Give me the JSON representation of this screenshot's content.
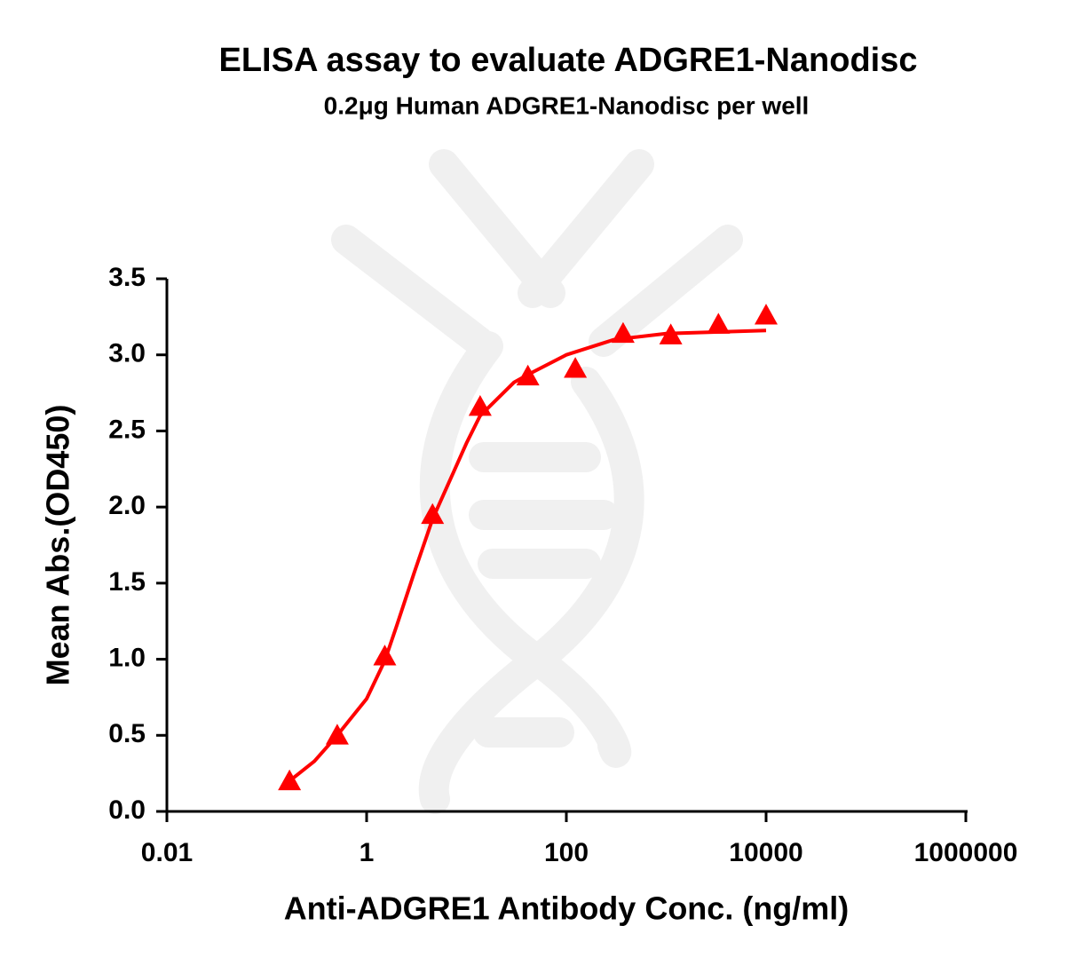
{
  "chart_data": {
    "type": "scatter",
    "title": "ELISA assay to evaluate ADGRE1-Nanodisc",
    "subtitle": "0.2μg Human ADGRE1-Nanodisc per well",
    "x_label": "Anti-ADGRE1 Antibody Conc. (ng/ml)",
    "y_label": "Mean Abs.(OD450)",
    "x_scale": "log",
    "xlim": [
      0.01,
      1000000
    ],
    "xticks": [
      0.01,
      1,
      100,
      10000,
      1000000
    ],
    "ylim": [
      0,
      3.5
    ],
    "yticks": [
      {
        "value": 0,
        "label": "0.0"
      },
      0.5,
      {
        "value": 1,
        "label": "1.0"
      },
      1.5,
      {
        "value": 2,
        "label": "2.0"
      },
      2.5,
      {
        "value": 3,
        "label": "3.0"
      },
      3.5
    ],
    "series": [
      {
        "marker": "triangle",
        "color": "#ff0000",
        "x": [
          0.169,
          0.508,
          1.52,
          4.57,
          13.7,
          41.2,
          123,
          370,
          1111,
          3333,
          10000
        ],
        "values": [
          0.2,
          0.5,
          1.02,
          1.95,
          2.66,
          2.86,
          2.91,
          3.14,
          3.13,
          3.2,
          3.26
        ]
      },
      {
        "marker": "line",
        "color": "#ff0000",
        "x": [
          0.169,
          0.3,
          0.508,
          1,
          1.52,
          2,
          3,
          4.57,
          10,
          13.7,
          30,
          41.2,
          100,
          300,
          1000,
          10000
        ],
        "values": [
          0.2,
          0.33,
          0.5,
          0.74,
          0.99,
          1.22,
          1.57,
          1.92,
          2.42,
          2.6,
          2.82,
          2.87,
          3.0,
          3.1,
          3.14,
          3.16
        ]
      }
    ]
  }
}
